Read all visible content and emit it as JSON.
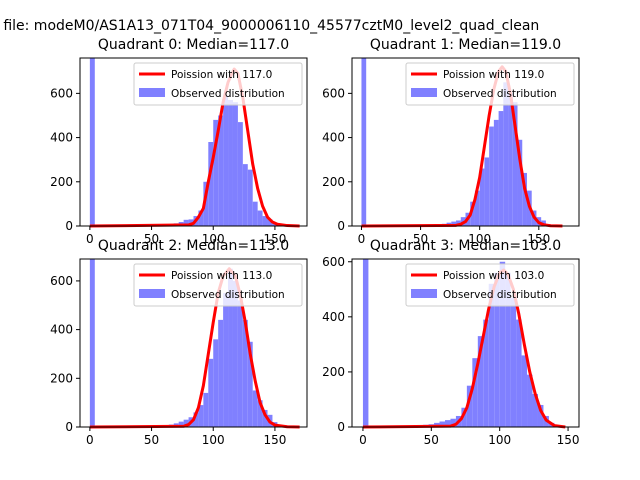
{
  "figure": {
    "suptitle": "n file: modeM0/AS1A13_071T04_9000006110_45577cztM0_level2_quad_clean"
  },
  "colors": {
    "hist": "#8080ff",
    "fit": "#ff0000",
    "axis": "#000000"
  },
  "chart_data": [
    {
      "type": "bar",
      "title": "Quadrant 0: Median=117.0",
      "median": 117.0,
      "legend": {
        "placement": "top-right",
        "line_label": "Poission with 117.0",
        "bar_label": "Observed distribution"
      },
      "xlim": [
        -8,
        176
      ],
      "ylim": [
        0,
        760
      ],
      "xticks": [
        0,
        50,
        100,
        150
      ],
      "yticks": [
        0,
        200,
        400,
        600
      ],
      "grid": false,
      "bin_width": 4,
      "histogram": {
        "bin_left": [
          0,
          60,
          64,
          68,
          72,
          76,
          80,
          84,
          88,
          92,
          96,
          100,
          104,
          108,
          112,
          116,
          120,
          124,
          128,
          132,
          136,
          140,
          144,
          148,
          152,
          156
        ],
        "counts": [
          760,
          5,
          8,
          12,
          18,
          28,
          30,
          45,
          70,
          200,
          380,
          480,
          500,
          590,
          570,
          560,
          470,
          280,
          255,
          110,
          70,
          45,
          30,
          15,
          8,
          3
        ]
      },
      "fit_curve": {
        "x": [
          0,
          80,
          84,
          88,
          92,
          96,
          100,
          104,
          108,
          112,
          116,
          117,
          120,
          124,
          128,
          132,
          136,
          140,
          144,
          148,
          152,
          160,
          170
        ],
        "y": [
          0,
          5,
          12,
          40,
          80,
          200,
          310,
          430,
          560,
          650,
          700,
          710,
          690,
          580,
          430,
          280,
          170,
          90,
          40,
          18,
          8,
          2,
          0
        ]
      }
    },
    {
      "type": "bar",
      "title": "Quadrant 1: Median=119.0",
      "median": 119.0,
      "legend": {
        "placement": "top-right",
        "line_label": "Poission with 119.0",
        "bar_label": "Observed distribution"
      },
      "xlim": [
        -8,
        184
      ],
      "ylim": [
        0,
        760
      ],
      "xticks": [
        0,
        50,
        100,
        150
      ],
      "yticks": [
        0,
        200,
        400,
        600
      ],
      "grid": false,
      "bin_width": 4,
      "histogram": {
        "bin_left": [
          0,
          60,
          64,
          68,
          72,
          76,
          80,
          84,
          88,
          92,
          96,
          100,
          104,
          108,
          112,
          116,
          120,
          124,
          128,
          132,
          136,
          140,
          144,
          148,
          152,
          156,
          160
        ],
        "counts": [
          760,
          5,
          7,
          10,
          15,
          20,
          25,
          40,
          60,
          110,
          160,
          260,
          310,
          450,
          480,
          520,
          650,
          600,
          560,
          390,
          240,
          160,
          70,
          40,
          25,
          8,
          3
        ]
      },
      "fit_curve": {
        "x": [
          0,
          80,
          84,
          88,
          92,
          96,
          100,
          104,
          108,
          112,
          116,
          119,
          122,
          126,
          130,
          134,
          138,
          142,
          146,
          150,
          154,
          160,
          170
        ],
        "y": [
          0,
          3,
          8,
          20,
          50,
          120,
          220,
          360,
          500,
          620,
          700,
          720,
          700,
          600,
          450,
          300,
          170,
          90,
          40,
          15,
          6,
          1,
          0
        ]
      }
    },
    {
      "type": "bar",
      "title": "Quadrant 2: Median=113.0",
      "median": 113.0,
      "legend": {
        "placement": "top-right",
        "line_label": "Poission with 113.0",
        "bar_label": "Observed distribution"
      },
      "xlim": [
        -8,
        176
      ],
      "ylim": [
        0,
        690
      ],
      "xticks": [
        0,
        50,
        100,
        150
      ],
      "yticks": [
        0,
        200,
        400,
        600
      ],
      "grid": false,
      "bin_width": 4,
      "histogram": {
        "bin_left": [
          0,
          56,
          60,
          64,
          68,
          72,
          76,
          80,
          84,
          88,
          92,
          96,
          100,
          104,
          108,
          112,
          116,
          120,
          124,
          128,
          132,
          136,
          140,
          144,
          148,
          152
        ],
        "counts": [
          690,
          4,
          6,
          10,
          15,
          22,
          30,
          40,
          60,
          90,
          140,
          280,
          360,
          440,
          550,
          650,
          600,
          520,
          440,
          350,
          150,
          110,
          70,
          50,
          20,
          5
        ]
      },
      "fit_curve": {
        "x": [
          0,
          76,
          80,
          84,
          88,
          92,
          96,
          100,
          104,
          108,
          113,
          118,
          122,
          126,
          130,
          134,
          138,
          142,
          146,
          150,
          160,
          170
        ],
        "y": [
          0,
          3,
          10,
          30,
          80,
          170,
          300,
          430,
          550,
          620,
          650,
          620,
          540,
          430,
          300,
          190,
          100,
          50,
          20,
          8,
          1,
          0
        ]
      }
    },
    {
      "type": "bar",
      "title": "Quadrant 3: Median=103.0",
      "median": 103.0,
      "legend": {
        "placement": "top-right",
        "line_label": "Poission with 103.0",
        "bar_label": "Observed distribution"
      },
      "xlim": [
        -8,
        158
      ],
      "ylim": [
        0,
        610
      ],
      "xticks": [
        0,
        50,
        100,
        150
      ],
      "yticks": [
        0,
        200,
        400,
        600
      ],
      "grid": false,
      "bin_width": 4,
      "histogram": {
        "bin_left": [
          0,
          40,
          44,
          48,
          52,
          56,
          60,
          64,
          68,
          72,
          76,
          80,
          84,
          88,
          92,
          96,
          100,
          104,
          108,
          112,
          116,
          120,
          124,
          128,
          132,
          136
        ],
        "counts": [
          610,
          5,
          8,
          10,
          15,
          20,
          25,
          30,
          40,
          70,
          150,
          250,
          330,
          390,
          520,
          560,
          600,
          560,
          470,
          390,
          260,
          190,
          120,
          80,
          40,
          15
        ]
      },
      "fit_curve": {
        "x": [
          0,
          64,
          68,
          72,
          76,
          80,
          84,
          88,
          92,
          96,
          100,
          103,
          106,
          110,
          114,
          118,
          122,
          126,
          130,
          134,
          140,
          148
        ],
        "y": [
          0,
          3,
          10,
          30,
          70,
          140,
          230,
          330,
          430,
          510,
          560,
          570,
          555,
          500,
          410,
          300,
          200,
          120,
          60,
          25,
          5,
          0
        ]
      }
    }
  ]
}
